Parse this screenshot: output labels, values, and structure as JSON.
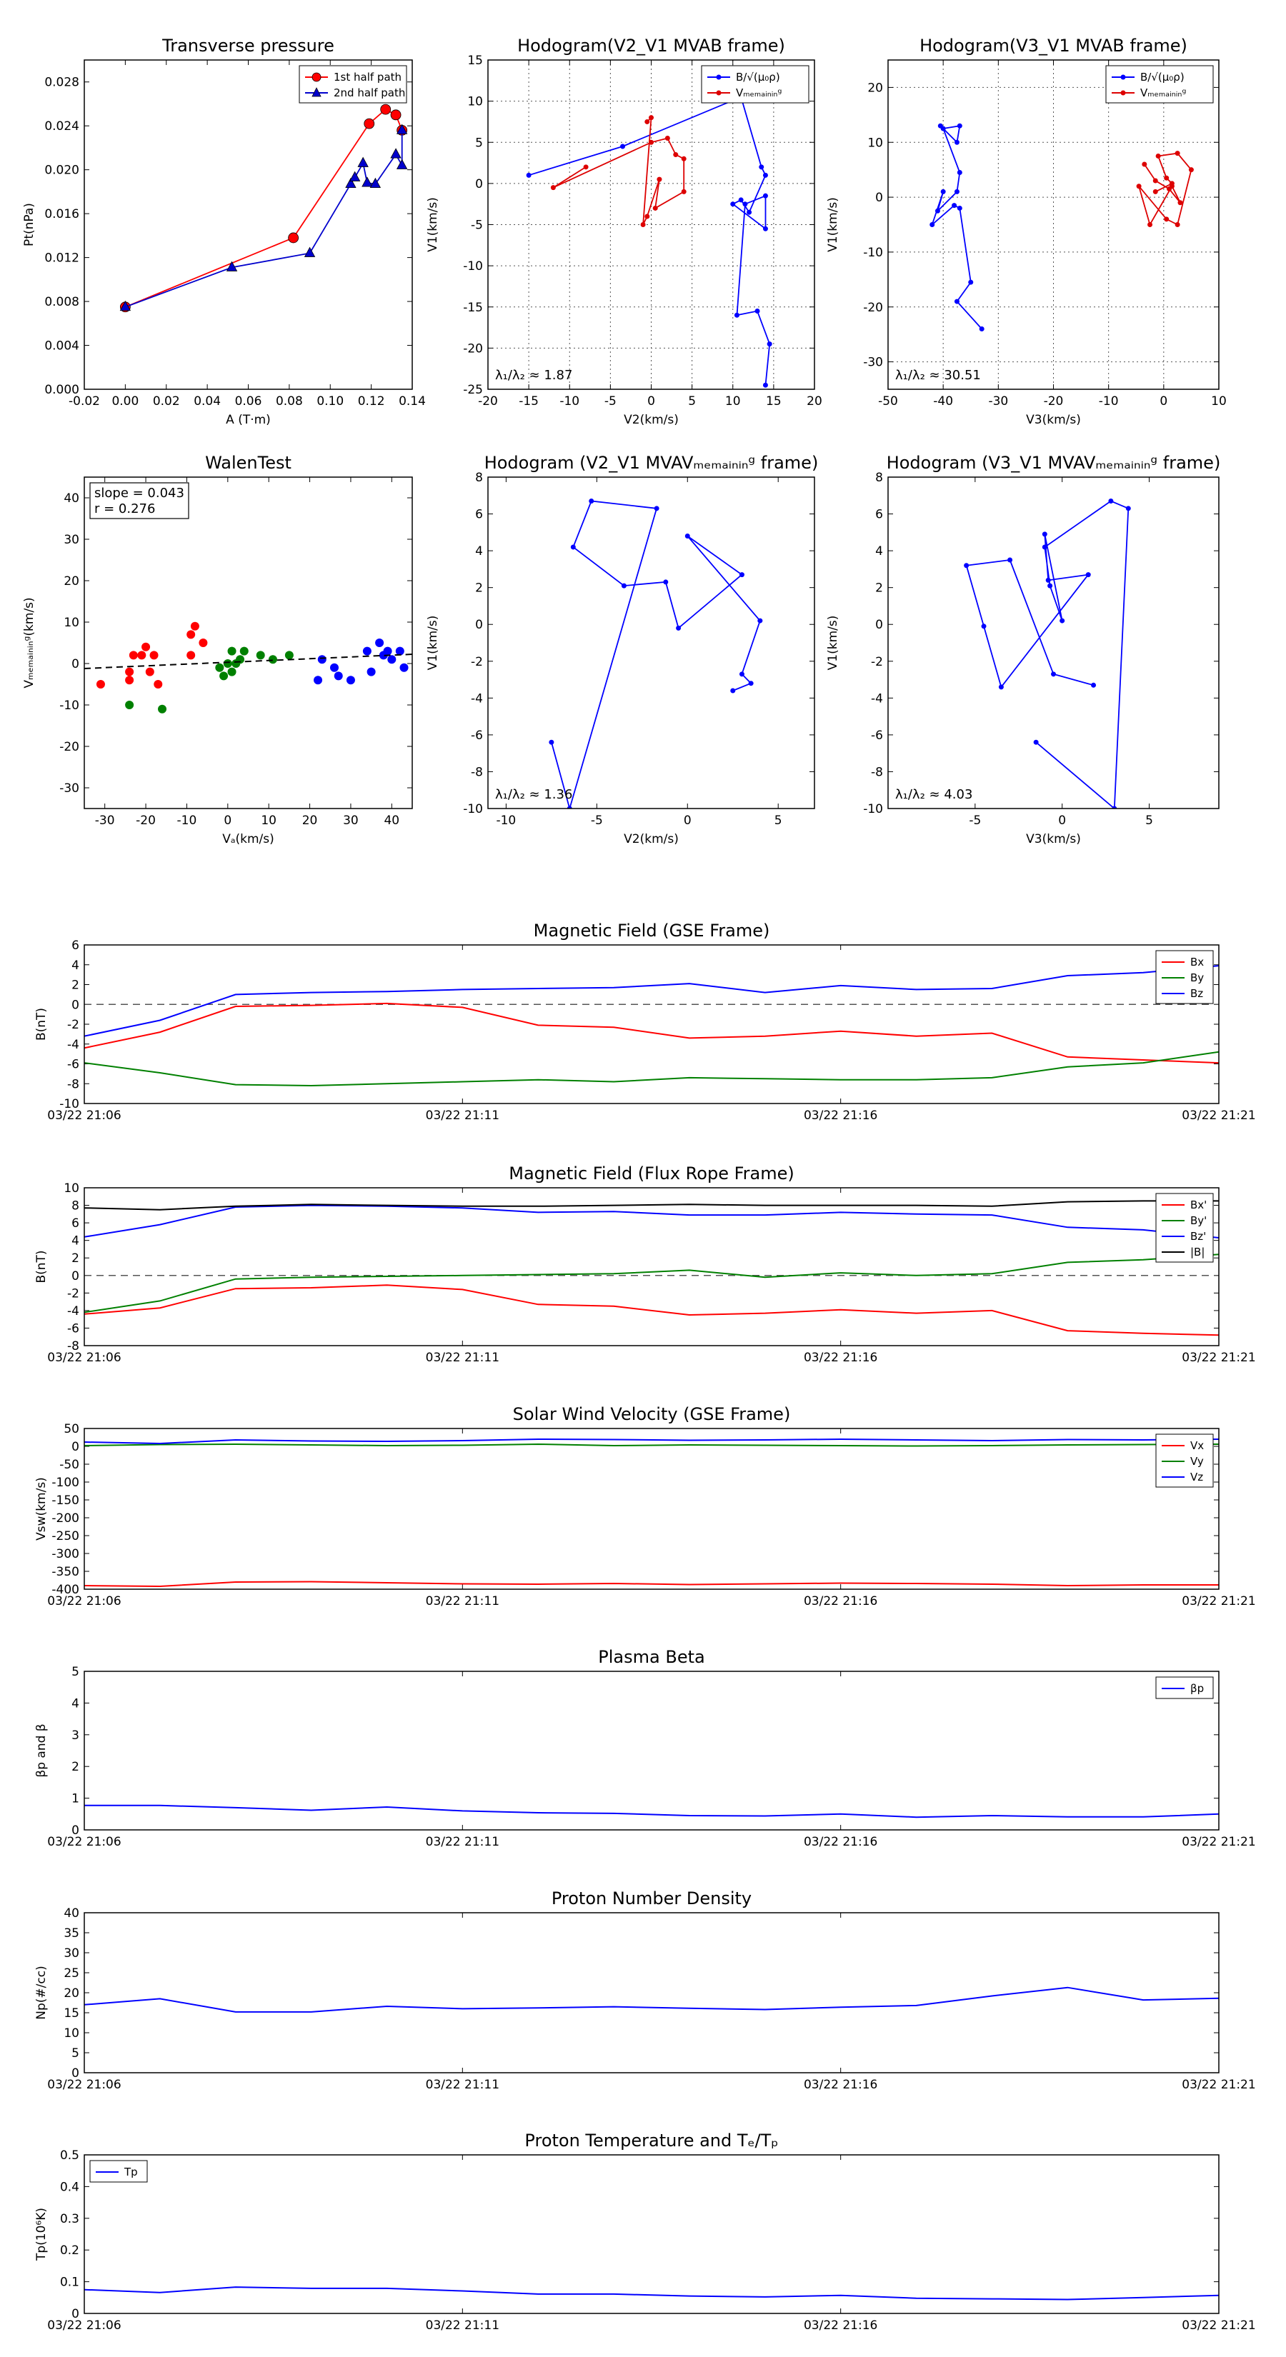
{
  "time_ticks": [
    "03/22 21:06",
    "03/22 21:11",
    "03/22 21:16",
    "03/22 21:21"
  ],
  "chart_data": [
    {
      "id": "tp",
      "type": "line",
      "title": "Transverse pressure",
      "xlabel": "A (T·m)",
      "ylabel": "Pt(nPa)",
      "xlim": [
        -0.02,
        0.14
      ],
      "ylim": [
        0,
        0.03
      ],
      "xticks": [
        -0.02,
        0,
        0.02,
        0.04,
        0.06,
        0.08,
        0.1,
        0.12,
        0.14
      ],
      "yticks": [
        0,
        0.004,
        0.008,
        0.012,
        0.016,
        0.02,
        0.024,
        0.028
      ],
      "xdec": 2,
      "ydec": 3,
      "legend": "top-right",
      "series": [
        {
          "name": "1st half path",
          "color": "#ff0000",
          "marker": "circle",
          "x": [
            0,
            0.082,
            0.119,
            0.127,
            0.132,
            0.135
          ],
          "y": [
            0.0075,
            0.0138,
            0.0242,
            0.0255,
            0.025,
            0.0236
          ]
        },
        {
          "name": "2nd half path",
          "color": "#0000cc",
          "marker": "triangle",
          "x": [
            0,
            0.052,
            0.09,
            0.11,
            0.112,
            0.116,
            0.118,
            0.122,
            0.132,
            0.135,
            0.135
          ],
          "y": [
            0.0075,
            0.0111,
            0.0124,
            0.0187,
            0.0193,
            0.0206,
            0.0188,
            0.0187,
            0.0214,
            0.0204,
            0.0236
          ]
        }
      ]
    },
    {
      "id": "h1",
      "type": "line",
      "title": "Hodogram(V2_V1 MVAB frame)",
      "xlabel": "V2(km/s)",
      "ylabel": "V1(km/s)",
      "xlim": [
        -20,
        20
      ],
      "ylim": [
        -25,
        15
      ],
      "xticks": [
        -20,
        -15,
        -10,
        -5,
        0,
        5,
        10,
        15,
        20
      ],
      "yticks": [
        -25,
        -20,
        -15,
        -10,
        -5,
        0,
        5,
        10,
        15
      ],
      "grid": true,
      "legend": "top-right",
      "annotation": "λ₁/λ₂ ≈ 1.87",
      "series": [
        {
          "name": "B/√(μ₀ρ)",
          "color": "#0000ff",
          "x": [
            14,
            14.5,
            13,
            10.5,
            11.5,
            14,
            14,
            10,
            11,
            12,
            14,
            13.5,
            11,
            -3.5,
            -15
          ],
          "y": [
            -24.5,
            -19.5,
            -15.5,
            -16,
            -2.5,
            -1.5,
            -5.5,
            -2.5,
            -2,
            -3.5,
            1,
            2,
            10.5,
            4.5,
            1
          ]
        },
        {
          "name": "Vₘₑₘₐᵢₙᵢₙᵍ",
          "color": "#dd0000",
          "x": [
            -8,
            -12,
            0,
            2,
            3,
            4,
            4,
            0.5,
            1,
            -0.5,
            -1,
            0,
            -0.5
          ],
          "y": [
            2,
            -0.5,
            5,
            5.5,
            3.5,
            3,
            -1,
            -3,
            0.5,
            -4,
            -5,
            8,
            7.5
          ],
          "extra": [
            [
              0.5,
              1.5
            ]
          ]
        }
      ]
    },
    {
      "id": "h2",
      "type": "line",
      "title": "Hodogram(V3_V1 MVAB frame)",
      "xlabel": "V3(km/s)",
      "ylabel": "V1(km/s)",
      "xlim": [
        -50,
        10
      ],
      "ylim": [
        -35,
        25
      ],
      "xticks": [
        -50,
        -40,
        -30,
        -20,
        -10,
        0,
        10
      ],
      "yticks": [
        -30,
        -20,
        -10,
        0,
        10,
        20
      ],
      "grid": true,
      "legend": "top-right",
      "annotation": "λ₁/λ₂ ≈ 30.51",
      "series": [
        {
          "name": "B/√(μ₀ρ)",
          "color": "#0000ff",
          "x": [
            -33,
            -37.5,
            -35,
            -37,
            -38,
            -42,
            -40,
            -41,
            -37.5,
            -37,
            -40,
            -37,
            -37.5,
            -40.5
          ],
          "y": [
            -24,
            -19,
            -15.5,
            -2,
            -1.5,
            -5,
            1,
            -2.5,
            1,
            4.5,
            12.5,
            13,
            10,
            13
          ]
        },
        {
          "name": "Vₘₑₘₐᵢₙᵢₙᵍ",
          "color": "#dd0000",
          "x": [
            -3.5,
            -1.5,
            1,
            3,
            1.5,
            -2.5,
            -4.5,
            0.5,
            2.5,
            5,
            2.5,
            -1,
            0.5,
            1.5,
            -1.5
          ],
          "y": [
            6,
            3,
            1.5,
            -1,
            2,
            -5,
            2,
            -4,
            -5,
            5,
            8,
            7.5,
            3.5,
            2.5,
            1
          ]
        }
      ]
    },
    {
      "id": "wt",
      "type": "scatter",
      "title": "WalenTest",
      "xlabel": "Vₐ(km/s)",
      "ylabel": "Vₘₑₘₐᵢₙᵢₙᵍ(km/s)",
      "xlim": [
        -35,
        45
      ],
      "ylim": [
        -35,
        45
      ],
      "xticks": [
        -30,
        -20,
        -10,
        0,
        10,
        20,
        30,
        40
      ],
      "yticks": [
        -30,
        -20,
        -10,
        0,
        10,
        20,
        30,
        40
      ],
      "legend_box": [
        "slope = 0.043",
        "r = 0.276"
      ],
      "fit": {
        "slope": 0.043,
        "intercept": 0.3
      },
      "series": [
        {
          "name": "red",
          "color": "#ff0000",
          "x": [
            -31,
            -24,
            -24,
            -23,
            -21,
            -20,
            -19,
            -17,
            -18,
            -9,
            -9,
            -8,
            -6
          ],
          "y": [
            -5,
            -2,
            -4,
            2,
            2,
            4,
            -2,
            -5,
            2,
            2,
            7,
            9,
            5
          ]
        },
        {
          "name": "green",
          "color": "#008000",
          "x": [
            -24,
            -16,
            -2,
            -1,
            0,
            1,
            1,
            2,
            3,
            4,
            8,
            11,
            15
          ],
          "y": [
            -10,
            -11,
            -1,
            -3,
            0,
            3,
            -2,
            0,
            1,
            3,
            2,
            1,
            2
          ]
        },
        {
          "name": "blue",
          "color": "#0000ff",
          "x": [
            22,
            23,
            26,
            27,
            30,
            34,
            35,
            37,
            38,
            39,
            40,
            42,
            43
          ],
          "y": [
            -4,
            1,
            -1,
            -3,
            -4,
            3,
            -2,
            5,
            2,
            3,
            1,
            3,
            -1
          ]
        }
      ]
    },
    {
      "id": "h3",
      "type": "line",
      "title": "Hodogram (V2_V1 MVAVₘₑₘₐᵢₙᵢₙᵍ frame)",
      "xlabel": "V2(km/s)",
      "ylabel": "V1(km/s)",
      "xlim": [
        -11,
        7
      ],
      "ylim": [
        -10,
        8
      ],
      "xticks": [
        -10,
        -5,
        0,
        5
      ],
      "yticks": [
        -10,
        -8,
        -6,
        -4,
        -2,
        0,
        2,
        4,
        6,
        8
      ],
      "annotation": "λ₁/λ₂ ≈ 1.36",
      "series": [
        {
          "name": "",
          "color": "#0000ff",
          "x": [
            -7.5,
            -6.5,
            -1.7,
            -5.3,
            -6.3,
            -3.5,
            -1.2,
            -0.5,
            3,
            0,
            4,
            3,
            3.5,
            2.5
          ],
          "y": [
            -6.4,
            -10,
            6.3,
            6.7,
            4.2,
            2.1,
            2.3,
            -0.2,
            2.7,
            4.8,
            0.2,
            -2.7,
            -3.2,
            -3.6
          ]
        }
      ]
    },
    {
      "id": "h4",
      "type": "line",
      "title": "Hodogram (V3_V1 MVAVₘₑₘₐᵢₙᵢₙᵍ frame)",
      "xlabel": "V3(km/s)",
      "ylabel": "V1(km/s)",
      "xlim": [
        -10,
        9
      ],
      "ylim": [
        -10,
        8
      ],
      "xticks": [
        -5,
        0,
        5
      ],
      "yticks": [
        -10,
        -8,
        -6,
        -4,
        -2,
        0,
        2,
        4,
        6,
        8
      ],
      "annotation": "λ₁/λ₂ ≈ 4.03",
      "series": [
        {
          "name": "",
          "color": "#0000ff",
          "x": [
            -1.5,
            3,
            3.8,
            2.8,
            -1,
            -0.7,
            0,
            -1,
            -0.8,
            1.5,
            -3.5,
            -4.5,
            -5.5,
            -3,
            -0.5,
            1.8
          ],
          "y": [
            -6.4,
            -10,
            6.3,
            6.7,
            4.2,
            2.1,
            0.2,
            4.9,
            2.4,
            2.7,
            -3.4,
            -0.1,
            3.2,
            3.5,
            -2.7,
            -3.3
          ]
        }
      ]
    },
    {
      "id": "bgse",
      "type": "line",
      "title": "Magnetic Field (GSE Frame)",
      "ylabel": "B(nT)",
      "ylim": [
        -10,
        6
      ],
      "yticks": [
        -10,
        -8,
        -6,
        -4,
        -2,
        0,
        2,
        4,
        6
      ],
      "hline": 0,
      "legend": "top-right",
      "timeaxis": true,
      "series": [
        {
          "name": "Bx",
          "color": "#ff0000",
          "y": [
            -4.4,
            -2.8,
            -0.2,
            -0.1,
            0.1,
            -0.3,
            -2.1,
            -2.3,
            -3.4,
            -3.2,
            -2.7,
            -3.2,
            -2.9,
            -5.3,
            -5.6,
            -5.9
          ]
        },
        {
          "name": "By",
          "color": "#008000",
          "y": [
            -5.9,
            -6.9,
            -8.1,
            -8.2,
            -8.0,
            -7.8,
            -7.6,
            -7.8,
            -7.4,
            -7.5,
            -7.6,
            -7.6,
            -7.4,
            -6.3,
            -5.9,
            -4.8
          ]
        },
        {
          "name": "Bz",
          "color": "#0000ff",
          "y": [
            -3.2,
            -1.6,
            1.0,
            1.2,
            1.3,
            1.5,
            1.6,
            1.7,
            2.1,
            1.2,
            1.9,
            1.5,
            1.6,
            2.9,
            3.2,
            3.9
          ]
        }
      ]
    },
    {
      "id": "bfr",
      "type": "line",
      "title": "Magnetic Field (Flux Rope Frame)",
      "ylabel": "B(nT)",
      "ylim": [
        -8,
        10
      ],
      "yticks": [
        -8,
        -6,
        -4,
        -2,
        0,
        2,
        4,
        6,
        8,
        10
      ],
      "hline": 0,
      "legend": "top-right",
      "timeaxis": true,
      "series": [
        {
          "name": "Bx'",
          "color": "#ff0000",
          "y": [
            -4.4,
            -3.7,
            -1.5,
            -1.4,
            -1.1,
            -1.6,
            -3.3,
            -3.5,
            -4.5,
            -4.3,
            -3.9,
            -4.3,
            -4.0,
            -6.3,
            -6.6,
            -6.8
          ]
        },
        {
          "name": "By'",
          "color": "#008000",
          "y": [
            -4.2,
            -2.9,
            -0.4,
            -0.2,
            -0.1,
            0.0,
            0.1,
            0.2,
            0.6,
            -0.2,
            0.3,
            0.0,
            0.2,
            1.5,
            1.8,
            2.4
          ]
        },
        {
          "name": "Bz'",
          "color": "#0000ff",
          "y": [
            4.4,
            5.8,
            7.8,
            8.0,
            7.9,
            7.7,
            7.2,
            7.3,
            6.9,
            6.9,
            7.2,
            7.0,
            6.9,
            5.5,
            5.2,
            4.3
          ]
        },
        {
          "name": "|B|",
          "color": "#000000",
          "y": [
            7.7,
            7.5,
            7.9,
            8.1,
            8.0,
            7.9,
            7.9,
            8.0,
            8.1,
            8.0,
            8.0,
            8.0,
            7.9,
            8.4,
            8.5,
            8.5
          ]
        }
      ]
    },
    {
      "id": "vsw",
      "type": "line",
      "title": "Solar Wind Velocity (GSE Frame)",
      "ylabel": "Vsw(km/s)",
      "ylim": [
        -400,
        50
      ],
      "yticks": [
        -400,
        -350,
        -300,
        -250,
        -200,
        -150,
        -100,
        -50,
        0,
        50
      ],
      "legend": "top-right",
      "timeaxis": true,
      "series": [
        {
          "name": "Vx",
          "color": "#ff0000",
          "y": [
            -390,
            -392,
            -380,
            -379,
            -382,
            -385,
            -386,
            -384,
            -387,
            -385,
            -383,
            -384,
            -386,
            -390,
            -388,
            -388
          ]
        },
        {
          "name": "Vy",
          "color": "#008000",
          "y": [
            2,
            5,
            6,
            4,
            2,
            3,
            6,
            2,
            4,
            3,
            2,
            1,
            2,
            4,
            5,
            6
          ]
        },
        {
          "name": "Vz",
          "color": "#0000ff",
          "y": [
            12,
            8,
            18,
            15,
            14,
            16,
            20,
            19,
            17,
            18,
            20,
            18,
            16,
            19,
            18,
            20
          ]
        }
      ]
    },
    {
      "id": "beta",
      "type": "line",
      "title": "Plasma Beta",
      "ylabel": "βp and β",
      "ylim": [
        0,
        5
      ],
      "yticks": [
        0,
        1,
        2,
        3,
        4,
        5
      ],
      "legend": "top-right",
      "timeaxis": true,
      "series": [
        {
          "name": "βp",
          "color": "#0000ff",
          "y": [
            0.77,
            0.77,
            0.7,
            0.62,
            0.72,
            0.6,
            0.54,
            0.52,
            0.45,
            0.44,
            0.5,
            0.4,
            0.45,
            0.41,
            0.41,
            0.5
          ]
        }
      ]
    },
    {
      "id": "np",
      "type": "line",
      "title": "Proton Number Density",
      "ylabel": "Np(#/cc)",
      "ylim": [
        0,
        40
      ],
      "yticks": [
        0,
        5,
        10,
        15,
        20,
        25,
        30,
        35,
        40
      ],
      "timeaxis": true,
      "series": [
        {
          "name": "",
          "color": "#0000ff",
          "y": [
            17,
            18.5,
            15.2,
            15.2,
            16.6,
            16,
            16.2,
            16.5,
            16.1,
            15.8,
            16.4,
            16.8,
            19.2,
            21.3,
            18.2,
            18.6
          ]
        }
      ]
    },
    {
      "id": "tpp",
      "type": "line",
      "title": "Proton Temperature and Tₑ/Tₚ",
      "ylabel": "Tp(10⁶K)",
      "ylim": [
        0,
        0.5
      ],
      "yticks": [
        0,
        0.1,
        0.2,
        0.3,
        0.4,
        0.5
      ],
      "legend": "top-left",
      "timeaxis": true,
      "series": [
        {
          "name": "Tp",
          "color": "#0000ff",
          "y": [
            0.075,
            0.066,
            0.083,
            0.079,
            0.079,
            0.071,
            0.061,
            0.061,
            0.055,
            0.052,
            0.057,
            0.048,
            0.046,
            0.044,
            0.05,
            0.057
          ]
        }
      ]
    }
  ]
}
